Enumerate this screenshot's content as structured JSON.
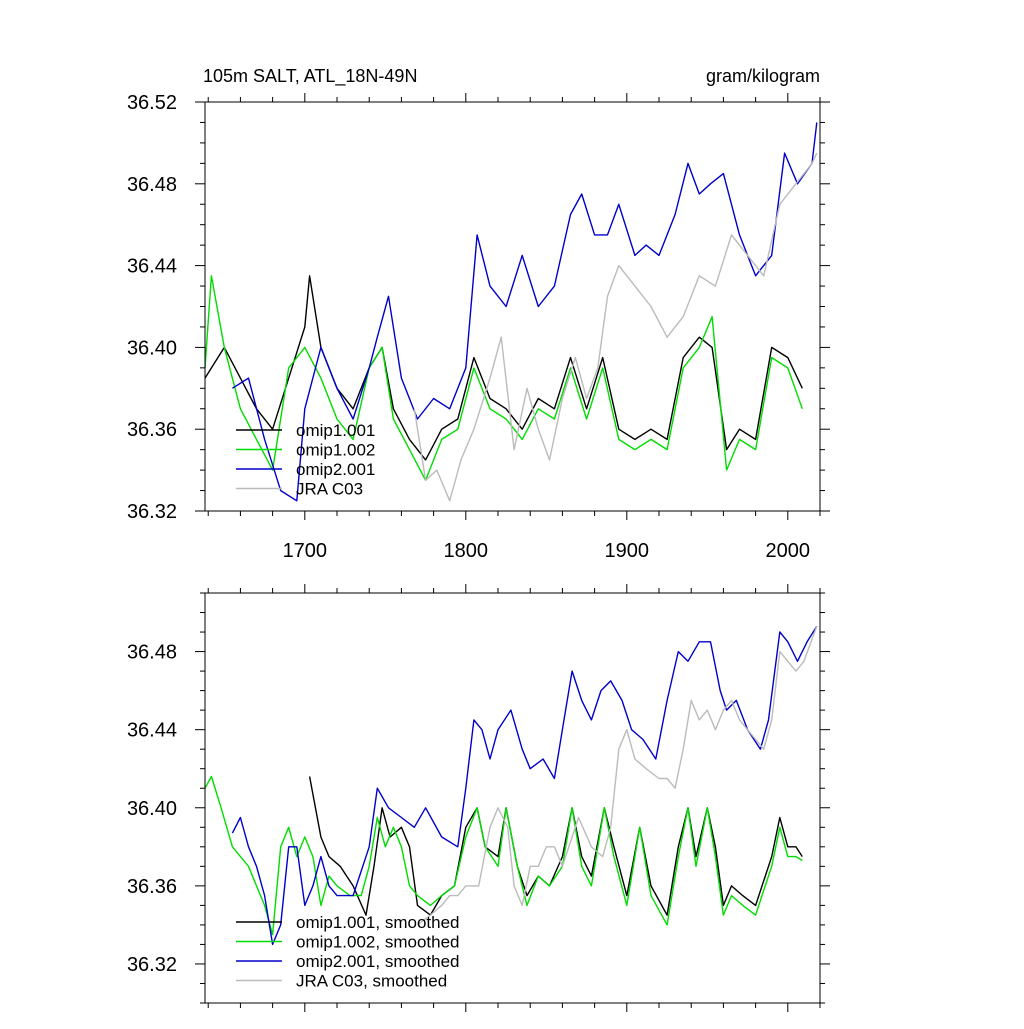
{
  "figure": {
    "background": "#ffffff"
  },
  "chart_data": [
    {
      "type": "line",
      "title_left": "105m SALT, ATL_18N-49N",
      "title_right": "gram/kilogram",
      "xlim": [
        1638,
        2020
      ],
      "ylim": [
        36.32,
        36.52
      ],
      "xticks": [
        1700,
        1800,
        1900,
        2000
      ],
      "yticks": [
        36.32,
        36.36,
        36.4,
        36.44,
        36.48,
        36.52
      ],
      "x_tick_labels_shown": true,
      "legend_position": "bottom-left",
      "grid": false,
      "series": [
        {
          "name": "omip1.001",
          "color": "#000000",
          "x": [
            1638,
            1650,
            1660,
            1670,
            1680,
            1690,
            1700,
            1703,
            1710,
            1720,
            1730,
            1740,
            1748,
            1755,
            1765,
            1775,
            1785,
            1795,
            1805,
            1815,
            1825,
            1835,
            1845,
            1855,
            1865,
            1875,
            1885,
            1895,
            1905,
            1915,
            1925,
            1935,
            1945,
            1953,
            1962,
            1970,
            1980,
            1990,
            2000,
            2009
          ],
          "y": [
            36.385,
            36.4,
            36.385,
            36.37,
            36.36,
            36.385,
            36.41,
            36.435,
            36.4,
            36.38,
            36.37,
            36.39,
            36.4,
            36.37,
            36.355,
            36.345,
            36.36,
            36.365,
            36.395,
            36.375,
            36.37,
            36.36,
            36.375,
            36.37,
            36.395,
            36.37,
            36.395,
            36.36,
            36.355,
            36.36,
            36.355,
            36.395,
            36.405,
            36.4,
            36.35,
            36.36,
            36.355,
            36.4,
            36.395,
            36.38
          ]
        },
        {
          "name": "omip1.002",
          "color": "#00dd00",
          "x": [
            1638,
            1642,
            1650,
            1660,
            1670,
            1680,
            1690,
            1700,
            1710,
            1720,
            1730,
            1740,
            1748,
            1755,
            1765,
            1775,
            1785,
            1795,
            1805,
            1815,
            1825,
            1835,
            1845,
            1855,
            1865,
            1875,
            1885,
            1895,
            1905,
            1915,
            1925,
            1935,
            1945,
            1953,
            1962,
            1970,
            1980,
            1990,
            2000,
            2009
          ],
          "y": [
            36.39,
            36.435,
            36.4,
            36.37,
            36.355,
            36.34,
            36.39,
            36.4,
            36.385,
            36.365,
            36.355,
            36.39,
            36.4,
            36.365,
            36.35,
            36.335,
            36.355,
            36.36,
            36.39,
            36.37,
            36.365,
            36.355,
            36.37,
            36.365,
            36.39,
            36.365,
            36.39,
            36.355,
            36.35,
            36.355,
            36.35,
            36.39,
            36.4,
            36.415,
            36.34,
            36.355,
            36.35,
            36.395,
            36.39,
            36.37
          ]
        },
        {
          "name": "omip2.001",
          "color": "#0000cc",
          "x": [
            1655,
            1665,
            1675,
            1685,
            1695,
            1700,
            1710,
            1720,
            1730,
            1740,
            1745,
            1752,
            1760,
            1770,
            1780,
            1790,
            1800,
            1807,
            1815,
            1825,
            1835,
            1845,
            1855,
            1865,
            1872,
            1880,
            1888,
            1895,
            1905,
            1912,
            1920,
            1930,
            1938,
            1945,
            1952,
            1960,
            1970,
            1980,
            1990,
            1998,
            2006,
            2015,
            2018
          ],
          "y": [
            36.38,
            36.385,
            36.355,
            36.33,
            36.325,
            36.37,
            36.4,
            36.38,
            36.365,
            36.39,
            36.405,
            36.425,
            36.385,
            36.365,
            36.375,
            36.37,
            36.39,
            36.455,
            36.43,
            36.42,
            36.445,
            36.42,
            36.43,
            36.465,
            36.475,
            36.455,
            36.455,
            36.47,
            36.445,
            36.45,
            36.445,
            36.465,
            36.49,
            36.475,
            36.48,
            36.485,
            36.455,
            36.435,
            36.445,
            36.495,
            36.48,
            36.49,
            36.51
          ]
        },
        {
          "name": "JRA C03",
          "color": "#bbbbbb",
          "x": [
            1768,
            1775,
            1782,
            1790,
            1797,
            1805,
            1815,
            1822,
            1830,
            1838,
            1845,
            1852,
            1860,
            1868,
            1875,
            1882,
            1888,
            1895,
            1905,
            1915,
            1925,
            1935,
            1945,
            1955,
            1965,
            1975,
            1985,
            1995,
            2005,
            2015,
            2018
          ],
          "y": [
            36.37,
            36.335,
            36.34,
            36.325,
            36.345,
            36.36,
            36.385,
            36.405,
            36.35,
            36.38,
            36.36,
            36.345,
            36.375,
            36.395,
            36.375,
            36.39,
            36.425,
            36.44,
            36.43,
            36.42,
            36.405,
            36.415,
            36.435,
            36.43,
            36.455,
            36.445,
            36.435,
            36.47,
            36.48,
            36.49,
            36.495
          ]
        }
      ]
    },
    {
      "type": "line",
      "title_left": "",
      "title_right": "",
      "xlim": [
        1638,
        2020
      ],
      "ylim": [
        36.3,
        36.51
      ],
      "xticks": [
        1700,
        1800,
        1900,
        2000
      ],
      "yticks": [
        36.32,
        36.36,
        36.4,
        36.44,
        36.48
      ],
      "x_tick_labels_shown": false,
      "legend_position": "bottom-left",
      "grid": false,
      "series": [
        {
          "name": "omip1.001, smoothed",
          "color": "#000000",
          "x": [
            1703,
            1710,
            1715,
            1722,
            1730,
            1738,
            1743,
            1748,
            1753,
            1760,
            1765,
            1770,
            1778,
            1785,
            1793,
            1800,
            1807,
            1812,
            1820,
            1825,
            1832,
            1838,
            1845,
            1852,
            1860,
            1866,
            1872,
            1878,
            1886,
            1892,
            1900,
            1908,
            1915,
            1925,
            1932,
            1938,
            1943,
            1950,
            1955,
            1960,
            1965,
            1972,
            1980,
            1990,
            1995,
            2000,
            2005,
            2009
          ],
          "y": [
            36.416,
            36.385,
            36.375,
            36.37,
            36.36,
            36.345,
            36.37,
            36.4,
            36.385,
            36.39,
            36.38,
            36.35,
            36.345,
            36.355,
            36.36,
            36.39,
            36.4,
            36.38,
            36.375,
            36.4,
            36.37,
            36.355,
            36.365,
            36.36,
            36.375,
            36.4,
            36.375,
            36.365,
            36.4,
            36.38,
            36.355,
            36.39,
            36.36,
            36.345,
            36.38,
            36.4,
            36.375,
            36.4,
            36.38,
            36.35,
            36.36,
            36.355,
            36.35,
            36.375,
            36.395,
            36.38,
            36.38,
            36.375
          ]
        },
        {
          "name": "omip1.002, smoothed",
          "color": "#00dd00",
          "x": [
            1638,
            1642,
            1648,
            1655,
            1660,
            1665,
            1670,
            1675,
            1680,
            1685,
            1690,
            1695,
            1700,
            1705,
            1710,
            1715,
            1720,
            1728,
            1735,
            1740,
            1745,
            1750,
            1755,
            1760,
            1765,
            1770,
            1778,
            1785,
            1793,
            1800,
            1807,
            1812,
            1820,
            1825,
            1832,
            1838,
            1845,
            1852,
            1860,
            1866,
            1872,
            1878,
            1886,
            1892,
            1900,
            1908,
            1915,
            1925,
            1932,
            1938,
            1943,
            1950,
            1955,
            1960,
            1965,
            1972,
            1980,
            1990,
            1995,
            2000,
            2005,
            2009
          ],
          "y": [
            36.41,
            36.416,
            36.4,
            36.38,
            36.375,
            36.37,
            36.36,
            36.35,
            36.335,
            36.38,
            36.39,
            36.375,
            36.385,
            36.375,
            36.35,
            36.365,
            36.36,
            36.355,
            36.355,
            36.37,
            36.395,
            36.38,
            36.39,
            36.38,
            36.36,
            36.355,
            36.35,
            36.355,
            36.36,
            36.385,
            36.4,
            36.38,
            36.37,
            36.4,
            36.37,
            36.35,
            36.365,
            36.36,
            36.37,
            36.4,
            36.37,
            36.36,
            36.4,
            36.375,
            36.35,
            36.39,
            36.355,
            36.34,
            36.375,
            36.4,
            36.37,
            36.4,
            36.375,
            36.345,
            36.355,
            36.35,
            36.345,
            36.37,
            36.39,
            36.375,
            36.375,
            36.373
          ]
        },
        {
          "name": "omip2.001, smoothed",
          "color": "#0000cc",
          "x": [
            1655,
            1660,
            1665,
            1670,
            1675,
            1680,
            1685,
            1690,
            1695,
            1700,
            1705,
            1710,
            1715,
            1720,
            1730,
            1740,
            1745,
            1752,
            1760,
            1768,
            1775,
            1785,
            1795,
            1800,
            1805,
            1810,
            1815,
            1820,
            1828,
            1835,
            1840,
            1848,
            1855,
            1862,
            1866,
            1872,
            1878,
            1884,
            1890,
            1897,
            1903,
            1910,
            1918,
            1925,
            1932,
            1938,
            1945,
            1952,
            1958,
            1962,
            1968,
            1975,
            1983,
            1988,
            1995,
            2000,
            2006,
            2012,
            2018
          ],
          "y": [
            36.387,
            36.395,
            36.38,
            36.37,
            36.355,
            36.33,
            36.34,
            36.38,
            36.38,
            36.35,
            36.36,
            36.375,
            36.36,
            36.355,
            36.355,
            36.38,
            36.41,
            36.4,
            36.395,
            36.39,
            36.4,
            36.385,
            36.38,
            36.41,
            36.445,
            36.44,
            36.425,
            36.44,
            36.45,
            36.43,
            36.42,
            36.425,
            36.415,
            36.45,
            36.47,
            36.455,
            36.445,
            36.46,
            36.465,
            36.455,
            36.44,
            36.435,
            36.425,
            36.455,
            36.48,
            36.475,
            36.485,
            36.485,
            36.46,
            36.45,
            36.455,
            36.44,
            36.43,
            36.445,
            36.49,
            36.485,
            36.475,
            36.485,
            36.493
          ]
        },
        {
          "name": "JRA C03, smoothed",
          "color": "#bbbbbb",
          "x": [
            1770,
            1778,
            1785,
            1790,
            1795,
            1800,
            1808,
            1815,
            1820,
            1826,
            1830,
            1835,
            1840,
            1845,
            1850,
            1855,
            1860,
            1866,
            1870,
            1878,
            1885,
            1890,
            1895,
            1900,
            1905,
            1912,
            1920,
            1925,
            1930,
            1935,
            1940,
            1945,
            1950,
            1955,
            1960,
            1965,
            1970,
            1975,
            1980,
            1985,
            1990,
            1995,
            2000,
            2005,
            2010,
            2018
          ],
          "y": [
            36.34,
            36.345,
            36.35,
            36.355,
            36.355,
            36.36,
            36.36,
            36.39,
            36.4,
            36.39,
            36.36,
            36.35,
            36.37,
            36.37,
            36.38,
            36.38,
            36.37,
            36.385,
            36.395,
            36.38,
            36.375,
            36.39,
            36.43,
            36.44,
            36.425,
            36.42,
            36.415,
            36.415,
            36.41,
            36.43,
            36.455,
            36.445,
            36.45,
            36.44,
            36.45,
            36.455,
            36.445,
            36.44,
            36.435,
            36.43,
            36.445,
            36.48,
            36.475,
            36.47,
            36.475,
            36.493
          ]
        }
      ]
    }
  ]
}
